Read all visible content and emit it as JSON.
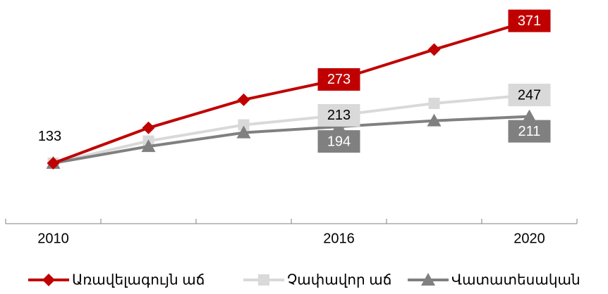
{
  "chart_data": {
    "type": "line",
    "categories": [
      "2010",
      null,
      null,
      "2016",
      null,
      "2020"
    ],
    "ylim": [
      60,
      380
    ],
    "series": [
      {
        "name": "Առավելագույն աճ",
        "color": "#c00000",
        "marker": "diamond",
        "values": [
          133,
          192,
          239,
          273,
          323,
          371
        ],
        "value_labels": [
          "133",
          null,
          null,
          "273",
          null,
          "371"
        ]
      },
      {
        "name": "Չափավոր աճ",
        "color": "#d9d9d9",
        "marker": "square",
        "values": [
          133,
          170,
          197,
          213,
          233,
          247
        ],
        "value_labels": [
          null,
          null,
          null,
          "213",
          null,
          "247"
        ]
      },
      {
        "name": "Վատատեսական",
        "color": "#808080",
        "marker": "triangle",
        "values": [
          133,
          161,
          184,
          194,
          204,
          211
        ],
        "value_labels": [
          null,
          null,
          null,
          "194",
          null,
          "211"
        ]
      }
    ],
    "legend": "bottom"
  }
}
